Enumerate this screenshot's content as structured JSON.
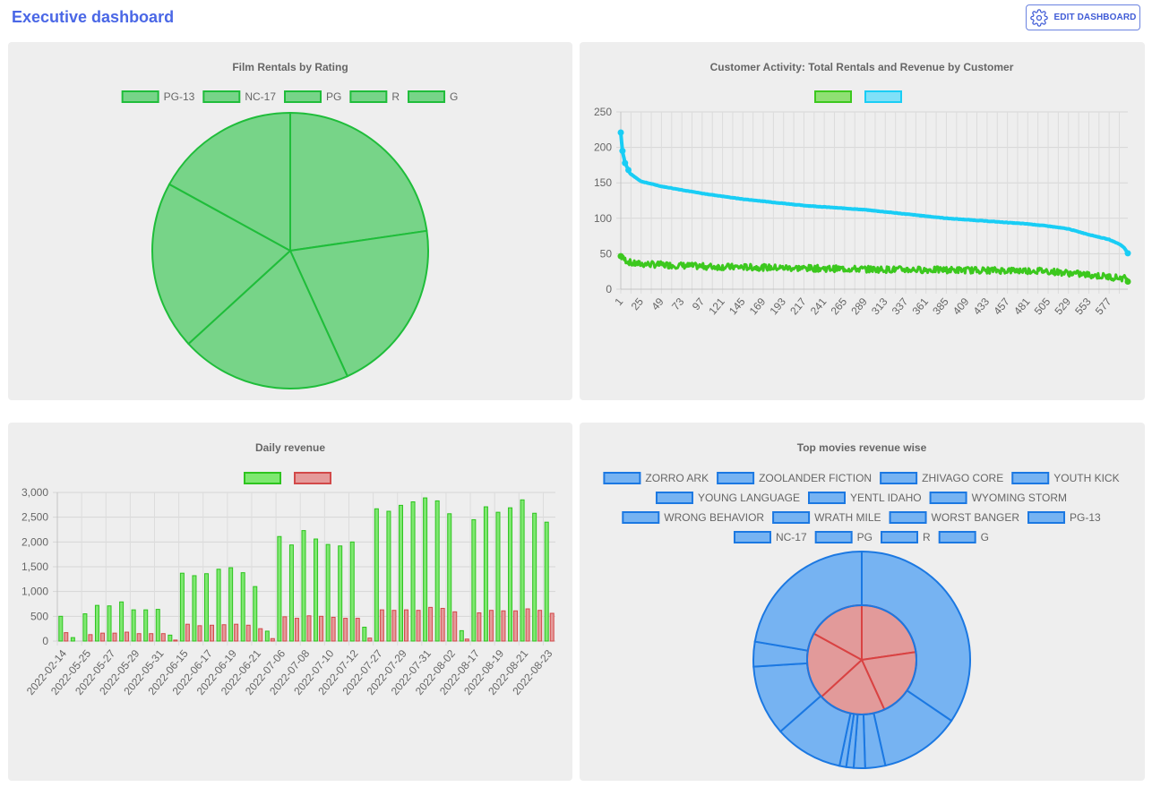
{
  "header": {
    "title": "Executive dashboard",
    "edit_button_label": "EDIT DASHBOARD",
    "edit_icon": "gear-icon"
  },
  "colors": {
    "green_fill": "#77d488",
    "green_stroke": "#1fbd3a",
    "cyan": "#19cdf5",
    "activity_green": "#3cc81e",
    "bar_green": "#7ee870",
    "bar_red": "#e59a9a",
    "blue_fill": "#76b3f2",
    "blue_stroke": "#1b78e2",
    "red_fill": "#e29a9a",
    "red_stroke": "#d94242"
  },
  "chart_data": [
    {
      "id": "ratings",
      "type": "pie",
      "title": "Film Rentals by Rating",
      "labels": [
        "PG-13",
        "NC-17",
        "PG",
        "R",
        "G"
      ],
      "values": [
        22.7,
        20.5,
        20.0,
        19.8,
        17.0
      ]
    },
    {
      "id": "activity",
      "type": "line",
      "title": "Customer Activity: Total Rentals and Revenue by Customer",
      "series": [
        {
          "name": "",
          "role": "rentals"
        },
        {
          "name": "",
          "role": "revenue"
        }
      ],
      "x_tick_labels": [
        "1",
        "25",
        "49",
        "73",
        "97",
        "121",
        "145",
        "169",
        "193",
        "217",
        "241",
        "265",
        "289",
        "313",
        "337",
        "361",
        "385",
        "409",
        "433",
        "457",
        "481",
        "505",
        "529",
        "553",
        "577"
      ],
      "x_count": 599,
      "ylim": [
        0,
        250
      ],
      "y_ticks": [
        0,
        50,
        100,
        150,
        200,
        250
      ],
      "revenue_profile": [
        [
          1,
          221
        ],
        [
          3,
          195
        ],
        [
          6,
          178
        ],
        [
          12,
          163
        ],
        [
          25,
          152
        ],
        [
          49,
          145
        ],
        [
          73,
          140
        ],
        [
          97,
          135
        ],
        [
          121,
          131
        ],
        [
          145,
          127
        ],
        [
          169,
          124
        ],
        [
          193,
          121
        ],
        [
          217,
          118
        ],
        [
          241,
          116
        ],
        [
          265,
          114
        ],
        [
          289,
          112
        ],
        [
          313,
          109
        ],
        [
          337,
          106
        ],
        [
          361,
          103
        ],
        [
          385,
          100
        ],
        [
          409,
          98
        ],
        [
          433,
          96
        ],
        [
          457,
          94
        ],
        [
          481,
          92
        ],
        [
          505,
          89
        ],
        [
          529,
          85
        ],
        [
          553,
          77
        ],
        [
          577,
          70
        ],
        [
          590,
          63
        ],
        [
          595,
          58
        ],
        [
          599,
          51
        ]
      ],
      "rentals_profile": [
        [
          1,
          46
        ],
        [
          5,
          42
        ],
        [
          15,
          36
        ],
        [
          100,
          32
        ],
        [
          200,
          30
        ],
        [
          300,
          28
        ],
        [
          400,
          27
        ],
        [
          500,
          26
        ],
        [
          599,
          15
        ]
      ]
    },
    {
      "id": "daily",
      "type": "bar",
      "title": "Daily revenue",
      "series": [
        {
          "name": "",
          "values": [
            500,
            70,
            550,
            720,
            710,
            790,
            630,
            630,
            640,
            120,
            1370,
            1320,
            1360,
            1450,
            1480,
            1380,
            1100,
            200,
            2110,
            1940,
            2230,
            2060,
            1950,
            1920,
            2000,
            280,
            2670,
            2620,
            2740,
            2810,
            2890,
            2830,
            2570,
            210,
            2450,
            2710,
            2600,
            2690,
            2850,
            2580,
            2400
          ]
        },
        {
          "name": "",
          "values": [
            170,
            0,
            130,
            160,
            160,
            180,
            150,
            150,
            150,
            20,
            340,
            310,
            320,
            330,
            340,
            320,
            250,
            50,
            490,
            460,
            510,
            500,
            480,
            460,
            460,
            60,
            630,
            620,
            630,
            620,
            680,
            660,
            590,
            40,
            570,
            620,
            610,
            610,
            650,
            620,
            560
          ]
        }
      ],
      "x_tick_labels": [
        "2022-02-14",
        "2022-05-25",
        "2022-05-27",
        "2022-05-29",
        "2022-05-31",
        "2022-06-15",
        "2022-06-17",
        "2022-06-19",
        "2022-06-21",
        "2022-07-06",
        "2022-07-08",
        "2022-07-10",
        "2022-07-12",
        "2022-07-27",
        "2022-07-29",
        "2022-07-31",
        "2022-08-02",
        "2022-08-17",
        "2022-08-19",
        "2022-08-21",
        "2022-08-23"
      ],
      "ylim": [
        0,
        3000
      ],
      "y_ticks": [
        "0",
        "500",
        "1,000",
        "1,500",
        "2,000",
        "2,500",
        "3,000"
      ]
    },
    {
      "id": "topmovies",
      "type": "pie",
      "subtype": "nested-doughnut",
      "title": "Top movies revenue wise",
      "legend": [
        "ZORRO ARK",
        "ZOOLANDER FICTION",
        "ZHIVAGO CORE",
        "YOUTH KICK",
        "YOUNG LANGUAGE",
        "YENTL IDAHO",
        "WYOMING STORM",
        "WRONG BEHAVIOR",
        "WRATH MILE",
        "WORST BANGER",
        "PG-13",
        "NC-17",
        "PG",
        "R",
        "G"
      ],
      "outer_values": [
        34.5,
        12.0,
        3.0,
        1.7,
        1.1,
        1.0,
        10.2,
        10.5,
        3.7,
        22.3
      ],
      "inner_values": [
        22.7,
        20.5,
        20.0,
        19.8,
        17.0
      ]
    }
  ]
}
